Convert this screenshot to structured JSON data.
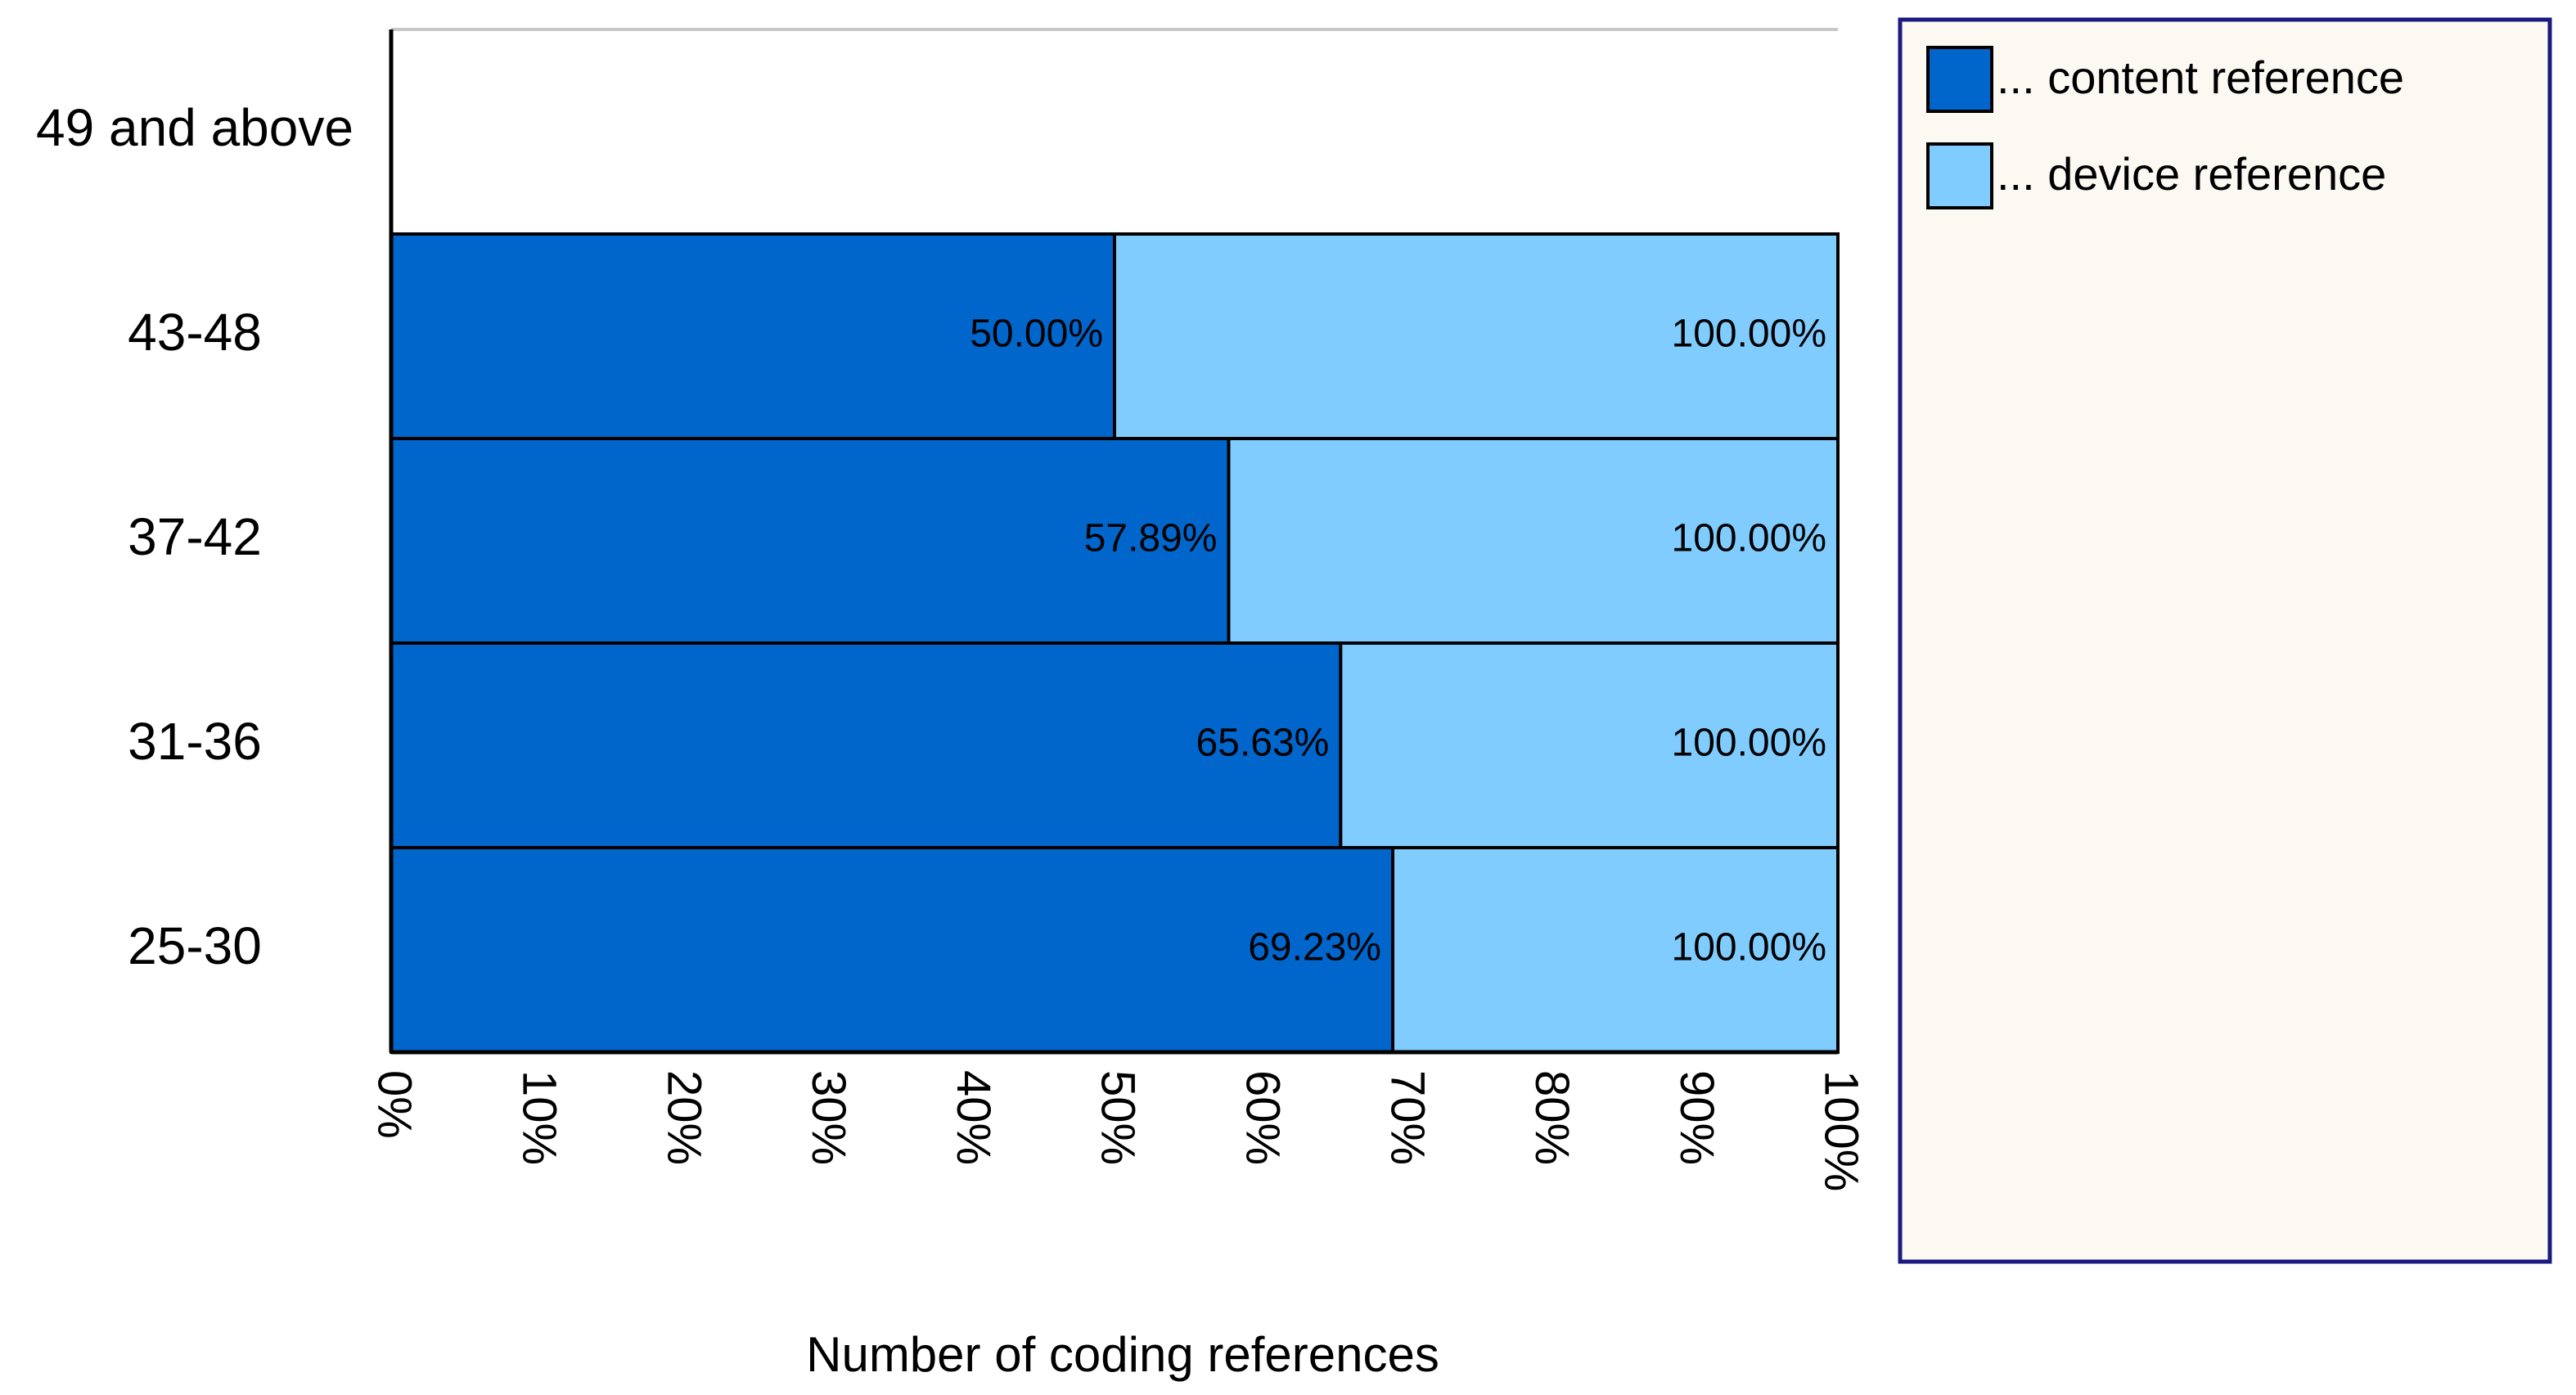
{
  "chart_data": {
    "type": "bar",
    "orientation": "horizontal",
    "stacked": true,
    "categories": [
      "49 and above",
      "43-48",
      "37-42",
      "31-36",
      "25-30"
    ],
    "series": [
      {
        "name": "... content reference",
        "color": "#0066cc",
        "values": [
          null,
          50.0,
          57.89,
          65.63,
          69.23
        ],
        "labels": [
          "",
          "50.00%",
          "57.89%",
          "65.63%",
          "69.23%"
        ]
      },
      {
        "name": "... device reference",
        "color": "#80ccff",
        "values": [
          null,
          50.0,
          42.11,
          34.37,
          30.77
        ],
        "labels": [
          "",
          "100.00%",
          "100.00%",
          "100.00%",
          "100.00%"
        ]
      }
    ],
    "xlabel": "Number of coding references",
    "ylabel": "",
    "xlim": [
      0,
      100
    ],
    "x_ticks": [
      "0%",
      "10%",
      "20%",
      "30%",
      "40%",
      "50%",
      "60%",
      "70%",
      "80%",
      "90%",
      "100%"
    ],
    "grid": false,
    "legend_position": "right",
    "legend_background": "#fcf8f2",
    "legend_border": "#1a1a80"
  }
}
